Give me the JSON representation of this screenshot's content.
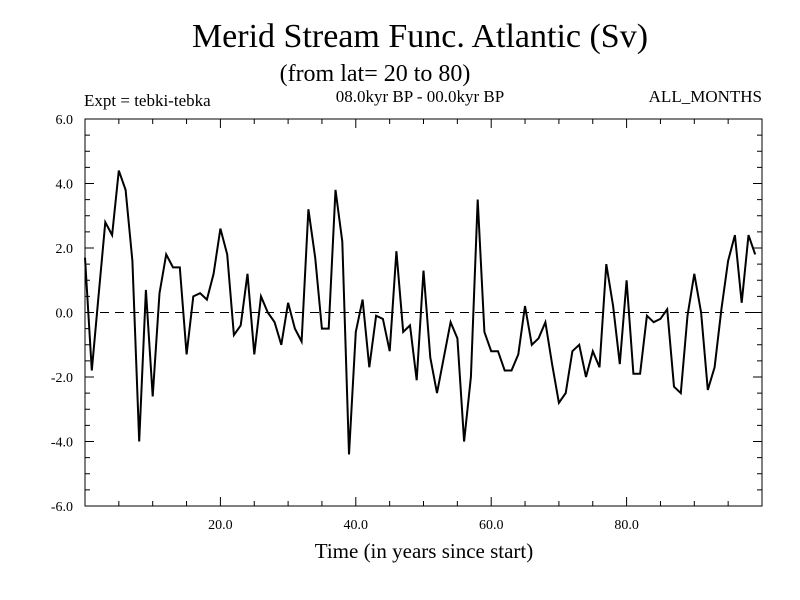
{
  "chart_data": {
    "type": "line",
    "title": "Merid Stream Func. Atlantic (Sv)",
    "subtitle": "(from lat= 20 to 80)",
    "experiment_label": "Expt = tebki-tebka",
    "period_label": "08.0kyr BP - 00.0kyr BP",
    "months_label": "ALL_MONTHS",
    "xlabel": "Time (in years since start)",
    "ylabel": "",
    "xlim": [
      0,
      100
    ],
    "ylim": [
      -6.0,
      6.0
    ],
    "xticks": [
      20,
      40,
      60,
      80
    ],
    "xtick_labels": [
      "20.0",
      "40.0",
      "60.0",
      "80.0"
    ],
    "yticks": [
      -6,
      -4,
      -2,
      0,
      2,
      4,
      6
    ],
    "ytick_labels": [
      "-6.0",
      "-4.0",
      "-2.0",
      "0.0",
      "2.0",
      "4.0",
      "6.0"
    ],
    "reference_line": 0.0,
    "line_color": "#000000",
    "series": [
      {
        "name": "Merid Stream Func.",
        "x": [
          0,
          1,
          2,
          3,
          4,
          5,
          6,
          7,
          8,
          9,
          10,
          11,
          12,
          13,
          14,
          15,
          16,
          17,
          18,
          19,
          20,
          21,
          22,
          23,
          24,
          25,
          26,
          27,
          28,
          29,
          30,
          31,
          32,
          33,
          34,
          35,
          36,
          37,
          38,
          39,
          40,
          41,
          42,
          43,
          44,
          45,
          46,
          47,
          48,
          49,
          50,
          51,
          52,
          53,
          54,
          55,
          56,
          57,
          58,
          59,
          60,
          61,
          62,
          63,
          64,
          65,
          66,
          67,
          68,
          69,
          70,
          71,
          72,
          73,
          74,
          75,
          76,
          77,
          78,
          79,
          80,
          81,
          82,
          83,
          84,
          85,
          86,
          87,
          88,
          89,
          90,
          91,
          92,
          93,
          94,
          95,
          96,
          97,
          98,
          99
        ],
        "values": [
          1.7,
          -1.8,
          0.5,
          2.8,
          2.4,
          4.4,
          3.8,
          1.6,
          -4.0,
          0.7,
          -2.6,
          0.6,
          1.8,
          1.4,
          1.4,
          -1.3,
          0.5,
          0.6,
          0.4,
          1.2,
          2.6,
          1.8,
          -0.7,
          -0.4,
          1.2,
          -1.3,
          0.5,
          0.0,
          -0.3,
          -1.0,
          0.3,
          -0.5,
          -0.9,
          3.2,
          1.7,
          -0.5,
          -0.5,
          3.8,
          2.2,
          -4.4,
          -0.6,
          0.4,
          -1.7,
          -0.1,
          -0.2,
          -1.2,
          1.9,
          -0.6,
          -0.4,
          -2.1,
          1.3,
          -1.4,
          -2.5,
          -1.4,
          -0.3,
          -0.8,
          -4.0,
          -2.0,
          3.5,
          -0.6,
          -1.2,
          -1.2,
          -1.8,
          -1.8,
          -1.3,
          0.2,
          -1.0,
          -0.8,
          -0.3,
          -1.6,
          -2.8,
          -2.5,
          -1.2,
          -1.0,
          -2.0,
          -1.2,
          -1.7,
          1.5,
          0.2,
          -1.6,
          1.0,
          -1.9,
          -1.9,
          -0.1,
          -0.3,
          -0.2,
          0.1,
          -2.3,
          -2.5,
          -0.1,
          1.2,
          0.0,
          -2.4,
          -1.7,
          0.1,
          1.6,
          2.4,
          0.3,
          2.4,
          1.8
        ]
      }
    ]
  }
}
